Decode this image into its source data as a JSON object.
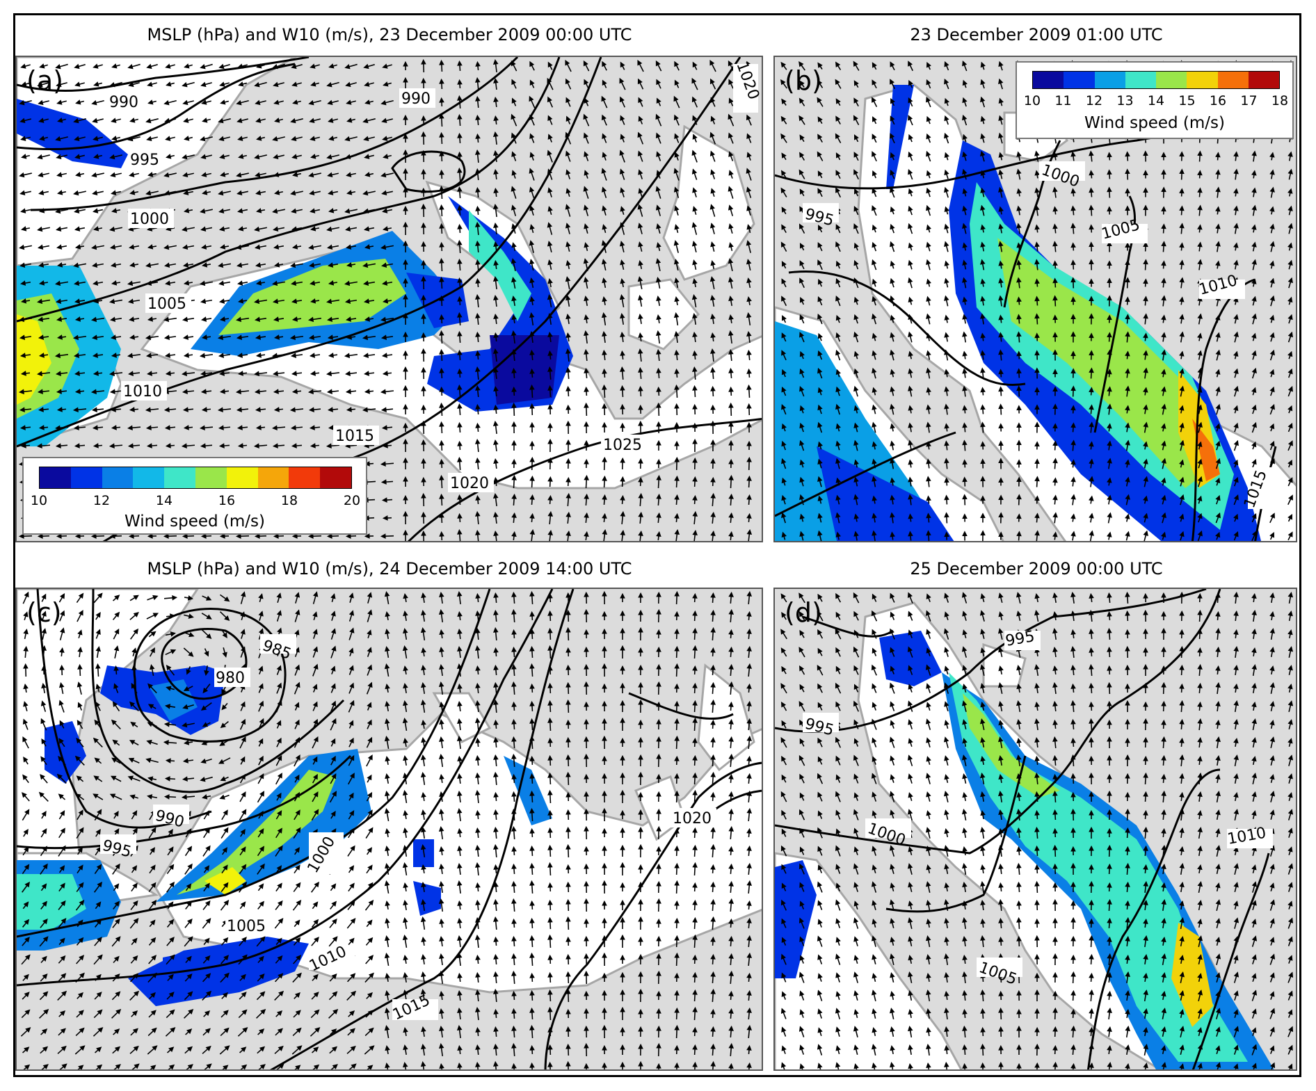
{
  "panels": [
    {
      "id": "a",
      "label": "(a)",
      "title": "MSLP (hPa) and W10 (m/s), 23 December 2009 00:00 UTC",
      "contour_labels": [
        "990",
        "990",
        "995",
        "1000",
        "1005",
        "1010",
        "1015",
        "1020",
        "1025",
        "1020"
      ]
    },
    {
      "id": "b",
      "label": "(b)",
      "title": "23 December 2009 01:00 UTC",
      "contour_labels": [
        "995",
        "1000",
        "1005",
        "1010",
        "1015"
      ]
    },
    {
      "id": "c",
      "label": "(c)",
      "title": "MSLP (hPa) and W10 (m/s), 24 December 2009 14:00 UTC",
      "contour_labels": [
        "985",
        "980",
        "990",
        "995",
        "1000",
        "1005",
        "1010",
        "1015",
        "1020"
      ]
    },
    {
      "id": "d",
      "label": "(d)",
      "title": "25 December 2009 00:00 UTC",
      "contour_labels": [
        "995",
        "995",
        "1000",
        "1005",
        "1010"
      ]
    }
  ],
  "legend_a": {
    "title": "Wind speed (m/s)",
    "ticks": [
      "10",
      "12",
      "14",
      "16",
      "18",
      "20"
    ],
    "colors": [
      "#0a0a9e",
      "#0033e6",
      "#0a7fe6",
      "#12b8e8",
      "#3fe6c8",
      "#9ae64a",
      "#f2f20a",
      "#f5a60a",
      "#f23a0a",
      "#b20a0a"
    ]
  },
  "legend_b": {
    "title": "Wind speed (m/s)",
    "ticks": [
      "10",
      "11",
      "12",
      "13",
      "14",
      "15",
      "16",
      "17",
      "18"
    ],
    "colors": [
      "#0a0a9e",
      "#0033e6",
      "#0a9fe6",
      "#3fe6c8",
      "#9ae64a",
      "#f2d20a",
      "#f5700a",
      "#b20a0a"
    ]
  },
  "colors": {
    "land": "#dcdcdc",
    "sea": "#ffffff",
    "coast": "#a6a6a6",
    "contour": "#000000"
  }
}
